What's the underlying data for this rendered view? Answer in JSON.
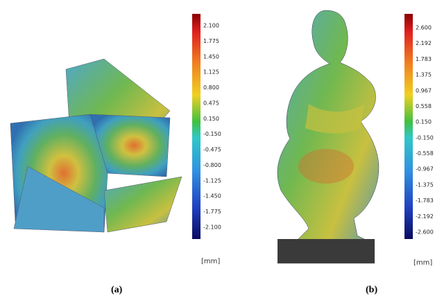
{
  "panels": [
    {
      "caption": "(a)",
      "unit": "[mm]",
      "ticks": [
        "2.100",
        "1.775",
        "1.450",
        "1.125",
        "0.800",
        "0.475",
        "0.150",
        "-0.150",
        "-0.475",
        "-0.800",
        "-1.125",
        "-1.450",
        "-1.775",
        "-2.100"
      ]
    },
    {
      "caption": "(b)",
      "unit": "[mm]",
      "ticks": [
        "2.600",
        "2.192",
        "1.783",
        "1.375",
        "0.967",
        "0.558",
        "0.150",
        "-0.150",
        "-0.558",
        "-0.967",
        "-1.375",
        "-1.783",
        "-2.192",
        "-2.600"
      ]
    }
  ]
}
